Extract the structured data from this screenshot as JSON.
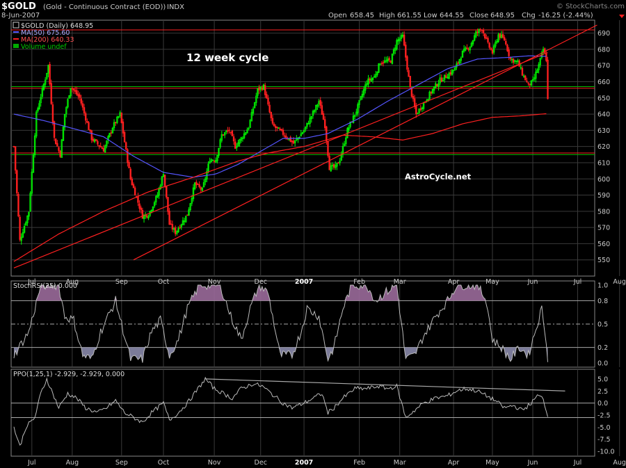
{
  "header": {
    "symbol": "$GOLD",
    "description": "(Gold - Continuous Contract (EOD))",
    "exchange": "INDX",
    "watermark": "© StockCharts.com",
    "date": "8-Jun-2007",
    "open_label": "Open",
    "open_value": "658.45",
    "high_label": "High",
    "high_value": "661.55",
    "low_label": "Low",
    "low_value": "644.55",
    "close_label": "Close",
    "close_value": "648.95",
    "chg_label": "Chg",
    "chg_value": "-16.25 (-2.44%)"
  },
  "legend": {
    "price": "$GOLD (Daily) 648.95",
    "ma50": "MA(50) 675.60",
    "ma200": "MA(200) 640.33",
    "volume": "Volume undef"
  },
  "annotations": {
    "cycle_text": "12 week cycle",
    "site_text": "AstroCycle.net"
  },
  "colors": {
    "up": "#00ff00",
    "down": "#ff2020",
    "ma50": "#5555ff",
    "ma200": "#ff2020",
    "trendline": "#ff2020",
    "grid": "#3a3a3a",
    "indicator_line": "#bbbbbb",
    "indicator_fill": "#9a6a9a",
    "text": "#dddddd"
  },
  "x_axis": {
    "months": [
      "Jul",
      "Aug",
      "Sep",
      "Oct",
      "Nov",
      "Dec",
      "2007",
      "Feb",
      "Mar",
      "Apr",
      "May",
      "Jun",
      "Jul",
      "Aug"
    ],
    "month_index": [
      12,
      39,
      72,
      100,
      134,
      165,
      194,
      231,
      258,
      294,
      320,
      347,
      377,
      405
    ]
  },
  "chart_data": [
    {
      "type": "candlestick",
      "title": "$GOLD (Daily) 648.95",
      "n_bars": 358,
      "ylim": [
        540,
        698
      ],
      "yticks": [
        550,
        560,
        570,
        580,
        590,
        600,
        610,
        620,
        630,
        640,
        650,
        660,
        670,
        680,
        690
      ],
      "close_keypoints": [
        [
          0,
          620
        ],
        [
          4,
          562
        ],
        [
          10,
          580
        ],
        [
          15,
          640
        ],
        [
          21,
          662
        ],
        [
          23,
          670
        ],
        [
          27,
          625
        ],
        [
          31,
          615
        ],
        [
          34,
          640
        ],
        [
          38,
          657
        ],
        [
          44,
          650
        ],
        [
          52,
          625
        ],
        [
          60,
          618
        ],
        [
          66,
          632
        ],
        [
          71,
          640
        ],
        [
          78,
          600
        ],
        [
          86,
          577
        ],
        [
          90,
          578
        ],
        [
          96,
          590
        ],
        [
          100,
          604
        ],
        [
          104,
          572
        ],
        [
          108,
          567
        ],
        [
          116,
          578
        ],
        [
          121,
          597
        ],
        [
          126,
          593
        ],
        [
          131,
          612
        ],
        [
          135,
          612
        ],
        [
          139,
          627
        ],
        [
          144,
          630
        ],
        [
          148,
          620
        ],
        [
          152,
          625
        ],
        [
          157,
          632
        ],
        [
          163,
          655
        ],
        [
          167,
          657
        ],
        [
          173,
          633
        ],
        [
          180,
          628
        ],
        [
          187,
          622
        ],
        [
          194,
          630
        ],
        [
          198,
          637
        ],
        [
          204,
          648
        ],
        [
          208,
          633
        ],
        [
          211,
          607
        ],
        [
          215,
          607
        ],
        [
          218,
          612
        ],
        [
          223,
          630
        ],
        [
          229,
          642
        ],
        [
          236,
          660
        ],
        [
          241,
          663
        ],
        [
          245,
          672
        ],
        [
          252,
          673
        ],
        [
          256,
          685
        ],
        [
          260,
          688
        ],
        [
          265,
          656
        ],
        [
          269,
          640
        ],
        [
          275,
          648
        ],
        [
          280,
          655
        ],
        [
          285,
          661
        ],
        [
          290,
          664
        ],
        [
          295,
          668
        ],
        [
          300,
          678
        ],
        [
          305,
          682
        ],
        [
          309,
          690
        ],
        [
          313,
          693
        ],
        [
          317,
          683
        ],
        [
          320,
          678
        ],
        [
          324,
          689
        ],
        [
          328,
          686
        ],
        [
          332,
          674
        ],
        [
          337,
          672
        ],
        [
          340,
          665
        ],
        [
          344,
          658
        ],
        [
          347,
          660
        ],
        [
          351,
          670
        ],
        [
          354,
          680
        ],
        [
          356,
          674
        ],
        [
          357,
          648.95
        ]
      ],
      "horizontal_lines": [
        {
          "value": 692,
          "color": "#ff2020"
        },
        {
          "value": 656,
          "color": "#ff2020"
        },
        {
          "value": 657,
          "color": "#00bb00"
        },
        {
          "value": 615,
          "color": "#00bb00"
        },
        {
          "value": 616,
          "color": "#ff2020"
        }
      ],
      "trendlines": [
        {
          "from": [
            0,
            545
          ],
          "to": [
            357,
            678
          ]
        },
        {
          "from": [
            80,
            550
          ],
          "to": [
            390,
            695
          ]
        }
      ],
      "ma50_keypoints": [
        [
          0,
          640
        ],
        [
          20,
          636
        ],
        [
          40,
          631
        ],
        [
          60,
          626
        ],
        [
          80,
          614
        ],
        [
          100,
          604
        ],
        [
          120,
          601
        ],
        [
          135,
          603
        ],
        [
          150,
          609
        ],
        [
          165,
          617
        ],
        [
          180,
          625
        ],
        [
          194,
          625
        ],
        [
          210,
          628
        ],
        [
          230,
          637
        ],
        [
          250,
          648
        ],
        [
          270,
          658
        ],
        [
          290,
          668
        ],
        [
          310,
          674
        ],
        [
          330,
          675
        ],
        [
          345,
          676
        ],
        [
          357,
          675.6
        ]
      ],
      "ma200_keypoints": [
        [
          0,
          549
        ],
        [
          30,
          566
        ],
        [
          60,
          580
        ],
        [
          90,
          592
        ],
        [
          120,
          601
        ],
        [
          150,
          611
        ],
        [
          170,
          616
        ],
        [
          194,
          620
        ],
        [
          220,
          627
        ],
        [
          240,
          626
        ],
        [
          260,
          624
        ],
        [
          280,
          628
        ],
        [
          300,
          634
        ],
        [
          320,
          638
        ],
        [
          340,
          639
        ],
        [
          357,
          640.33
        ]
      ]
    },
    {
      "type": "line",
      "title": "StochRSI(25) 0.000",
      "ylim": [
        0,
        1
      ],
      "yticks": [
        0.0,
        0.2,
        0.5,
        0.8,
        1.0
      ],
      "reference_lines": [
        0.2,
        0.5,
        0.8
      ],
      "keypoints": [
        [
          0,
          0.1
        ],
        [
          10,
          0.4
        ],
        [
          18,
          1.0
        ],
        [
          30,
          1.0
        ],
        [
          34,
          0.6
        ],
        [
          40,
          0.55
        ],
        [
          46,
          0.1
        ],
        [
          52,
          0.05
        ],
        [
          58,
          0.4
        ],
        [
          68,
          0.8
        ],
        [
          72,
          0.5
        ],
        [
          78,
          0.05
        ],
        [
          86,
          0.05
        ],
        [
          92,
          0.4
        ],
        [
          98,
          0.55
        ],
        [
          104,
          0.1
        ],
        [
          110,
          0.3
        ],
        [
          116,
          0.7
        ],
        [
          124,
          1.0
        ],
        [
          138,
          1.0
        ],
        [
          145,
          0.6
        ],
        [
          152,
          0.3
        ],
        [
          158,
          0.7
        ],
        [
          164,
          1.0
        ],
        [
          170,
          0.9
        ],
        [
          178,
          0.1
        ],
        [
          186,
          0.1
        ],
        [
          192,
          0.4
        ],
        [
          196,
          0.7
        ],
        [
          204,
          0.6
        ],
        [
          210,
          0.05
        ],
        [
          214,
          0.2
        ],
        [
          220,
          0.7
        ],
        [
          226,
          1.0
        ],
        [
          236,
          1.0
        ],
        [
          242,
          0.8
        ],
        [
          248,
          0.9
        ],
        [
          256,
          1.0
        ],
        [
          262,
          0.05
        ],
        [
          268,
          0.1
        ],
        [
          274,
          0.35
        ],
        [
          282,
          0.6
        ],
        [
          290,
          0.8
        ],
        [
          296,
          1.0
        ],
        [
          310,
          1.0
        ],
        [
          316,
          0.8
        ],
        [
          320,
          0.3
        ],
        [
          326,
          0.2
        ],
        [
          332,
          0.05
        ],
        [
          338,
          0.2
        ],
        [
          344,
          0.1
        ],
        [
          350,
          0.5
        ],
        [
          353,
          0.7
        ],
        [
          356,
          0.3
        ],
        [
          357,
          0.0
        ]
      ]
    },
    {
      "type": "line",
      "title": "PPO(1,25,1) -2.929, -2.929, 0.000",
      "ylim": [
        -11,
        7
      ],
      "yticks": [
        5.0,
        2.5,
        0.0,
        -2.5,
        -5.0,
        -7.5,
        -10.0
      ],
      "reference_lines": [
        0,
        -3
      ],
      "resistance": {
        "from": [
          128,
          5
        ],
        "to": [
          357,
          2.8
        ]
      },
      "keypoints": [
        [
          0,
          -5
        ],
        [
          4,
          -9
        ],
        [
          8,
          -5
        ],
        [
          14,
          -3
        ],
        [
          18,
          2
        ],
        [
          22,
          5
        ],
        [
          26,
          2
        ],
        [
          30,
          -1
        ],
        [
          36,
          2
        ],
        [
          42,
          1
        ],
        [
          48,
          -1
        ],
        [
          56,
          -2
        ],
        [
          62,
          -1
        ],
        [
          68,
          0.5
        ],
        [
          74,
          -2
        ],
        [
          80,
          -3
        ],
        [
          86,
          -4
        ],
        [
          92,
          -2
        ],
        [
          100,
          0
        ],
        [
          104,
          -3.5
        ],
        [
          110,
          -2
        ],
        [
          116,
          0
        ],
        [
          122,
          2.5
        ],
        [
          128,
          5
        ],
        [
          134,
          3
        ],
        [
          140,
          2
        ],
        [
          146,
          1
        ],
        [
          152,
          3
        ],
        [
          160,
          4
        ],
        [
          166,
          3.5
        ],
        [
          172,
          2
        ],
        [
          180,
          0
        ],
        [
          186,
          -1
        ],
        [
          194,
          0
        ],
        [
          200,
          1
        ],
        [
          206,
          2
        ],
        [
          210,
          -2
        ],
        [
          214,
          -1
        ],
        [
          220,
          1
        ],
        [
          228,
          3
        ],
        [
          236,
          3
        ],
        [
          244,
          3.5
        ],
        [
          250,
          3
        ],
        [
          256,
          3.5
        ],
        [
          262,
          -3
        ],
        [
          268,
          -1.5
        ],
        [
          274,
          0
        ],
        [
          282,
          1
        ],
        [
          290,
          1.5
        ],
        [
          296,
          2.5
        ],
        [
          302,
          3
        ],
        [
          310,
          2.5
        ],
        [
          316,
          1.5
        ],
        [
          322,
          0.5
        ],
        [
          328,
          -1
        ],
        [
          334,
          -0.5
        ],
        [
          340,
          -1.5
        ],
        [
          346,
          0
        ],
        [
          350,
          1.5
        ],
        [
          354,
          1
        ],
        [
          357,
          -2.929
        ]
      ]
    }
  ]
}
